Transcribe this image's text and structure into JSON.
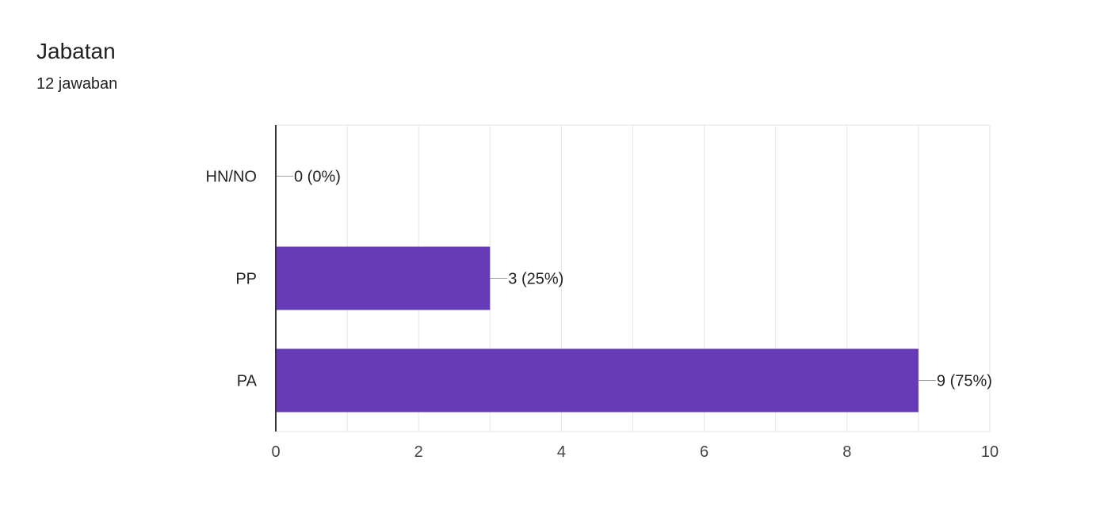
{
  "header": {
    "title": "Jabatan",
    "subtitle": "12 jawaban"
  },
  "colors": {
    "bar": "#673ab7",
    "grid": "#e6e6e6",
    "axis": "#333333",
    "text": "#222222",
    "leader": "#9e9e9e"
  },
  "chart_data": {
    "type": "bar",
    "orientation": "horizontal",
    "title": "Jabatan",
    "subtitle": "12 jawaban",
    "categories": [
      "HN/NO",
      "PP",
      "PA"
    ],
    "values": [
      0,
      3,
      9
    ],
    "data_labels": [
      "0 (0%)",
      "3 (25%)",
      "9 (75%)"
    ],
    "xlim": [
      0,
      10
    ],
    "xticks": [
      0,
      2,
      4,
      6,
      8,
      10
    ],
    "grid": true,
    "legend": "none"
  }
}
